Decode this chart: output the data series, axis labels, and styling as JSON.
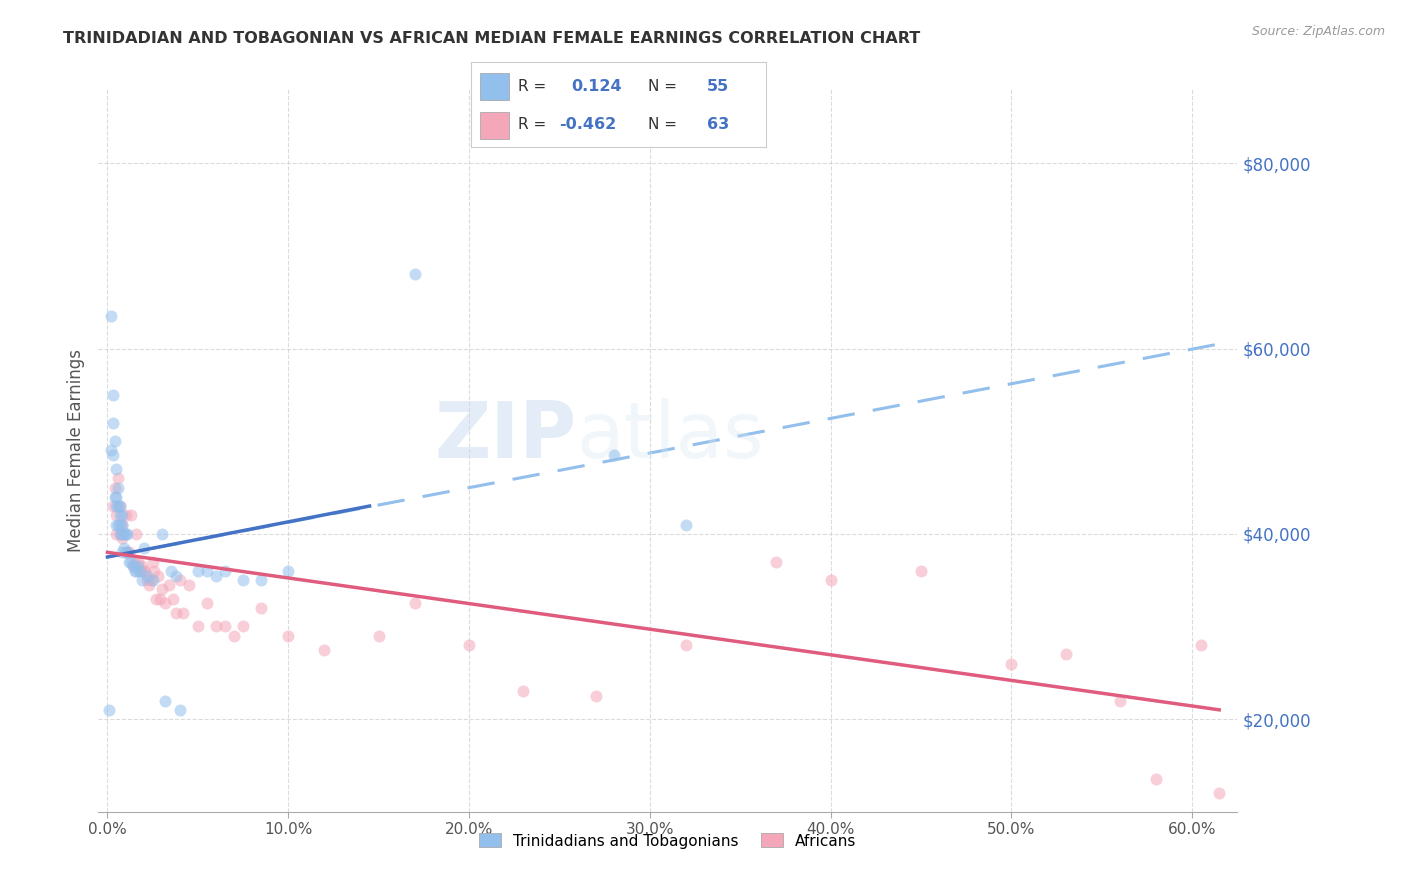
{
  "title": "TRINIDADIAN AND TOBAGONIAN VS AFRICAN MEDIAN FEMALE EARNINGS CORRELATION CHART",
  "source": "Source: ZipAtlas.com",
  "ylabel": "Median Female Earnings",
  "xlabel_ticks": [
    "0.0%",
    "10.0%",
    "20.0%",
    "30.0%",
    "40.0%",
    "50.0%",
    "60.0%"
  ],
  "xlabel_vals": [
    0.0,
    0.1,
    0.2,
    0.3,
    0.4,
    0.5,
    0.6
  ],
  "ylabel_ticks": [
    20000,
    40000,
    60000,
    80000
  ],
  "ylabel_labels": [
    "$20,000",
    "$40,000",
    "$60,000",
    "$80,000"
  ],
  "ylim": [
    10000,
    88000
  ],
  "xlim": [
    -0.005,
    0.625
  ],
  "series1_color": "#92BFEC",
  "series2_color": "#F4A7B9",
  "trendline1_solid_color": "#4472C4",
  "trendline2_color": "#E05C7E",
  "dashed_line_color": "#92BFEC",
  "legend_label1": "Trinidadians and Tobagonians",
  "legend_label2": "Africans",
  "watermark_zip": "ZIP",
  "watermark_atlas": "atlas",
  "title_color": "#333333",
  "axis_label_color": "#4472C4",
  "series1_x": [
    0.001,
    0.002,
    0.002,
    0.003,
    0.003,
    0.003,
    0.004,
    0.004,
    0.005,
    0.005,
    0.005,
    0.005,
    0.006,
    0.006,
    0.006,
    0.007,
    0.007,
    0.007,
    0.007,
    0.008,
    0.008,
    0.008,
    0.008,
    0.009,
    0.009,
    0.01,
    0.01,
    0.011,
    0.011,
    0.012,
    0.013,
    0.014,
    0.015,
    0.016,
    0.017,
    0.018,
    0.019,
    0.02,
    0.022,
    0.025,
    0.03,
    0.032,
    0.035,
    0.038,
    0.04,
    0.05,
    0.055,
    0.06,
    0.065,
    0.075,
    0.085,
    0.1,
    0.17,
    0.28,
    0.32
  ],
  "series1_y": [
    21000,
    63500,
    49000,
    55000,
    52000,
    48500,
    50000,
    44000,
    47000,
    44000,
    43000,
    41000,
    45000,
    43000,
    41000,
    43000,
    42000,
    41000,
    40000,
    42000,
    41000,
    40000,
    38000,
    40000,
    38500,
    40000,
    38000,
    38000,
    40000,
    37000,
    37000,
    36500,
    36000,
    36000,
    36500,
    36000,
    35000,
    38500,
    35500,
    35000,
    40000,
    22000,
    36000,
    35500,
    21000,
    36000,
    36000,
    35500,
    36000,
    35000,
    35000,
    36000,
    68000,
    48500,
    41000
  ],
  "series2_x": [
    0.003,
    0.004,
    0.005,
    0.005,
    0.006,
    0.007,
    0.007,
    0.008,
    0.008,
    0.009,
    0.01,
    0.01,
    0.011,
    0.012,
    0.013,
    0.014,
    0.015,
    0.016,
    0.017,
    0.018,
    0.019,
    0.02,
    0.021,
    0.022,
    0.023,
    0.024,
    0.025,
    0.026,
    0.027,
    0.028,
    0.029,
    0.03,
    0.032,
    0.034,
    0.036,
    0.038,
    0.04,
    0.042,
    0.045,
    0.05,
    0.055,
    0.06,
    0.065,
    0.07,
    0.075,
    0.085,
    0.1,
    0.12,
    0.15,
    0.17,
    0.2,
    0.23,
    0.27,
    0.32,
    0.37,
    0.4,
    0.45,
    0.5,
    0.53,
    0.56,
    0.58,
    0.605,
    0.615
  ],
  "series2_y": [
    43000,
    45000,
    42000,
    40000,
    46000,
    43000,
    40000,
    41000,
    39500,
    40000,
    42000,
    38000,
    38000,
    38000,
    42000,
    36500,
    37000,
    40000,
    37000,
    36000,
    36500,
    36000,
    36000,
    35000,
    34500,
    35000,
    37000,
    36000,
    33000,
    35500,
    33000,
    34000,
    32500,
    34500,
    33000,
    31500,
    35000,
    31500,
    34500,
    30000,
    32500,
    30000,
    30000,
    29000,
    30000,
    32000,
    29000,
    27500,
    29000,
    32500,
    28000,
    23000,
    22500,
    28000,
    37000,
    35000,
    36000,
    26000,
    27000,
    22000,
    13500,
    28000,
    12000
  ],
  "trendline1_x": [
    0.0,
    0.145
  ],
  "trendline1_y": [
    37500,
    43000
  ],
  "dashed_line_x": [
    0.0,
    0.615
  ],
  "dashed_line_y": [
    37500,
    60500
  ],
  "trendline2_x": [
    0.0,
    0.615
  ],
  "trendline2_y": [
    38000,
    21000
  ],
  "marker_size": 75,
  "marker_alpha": 0.55,
  "grid_color": "#CCCCCC",
  "background_color": "#FFFFFF"
}
